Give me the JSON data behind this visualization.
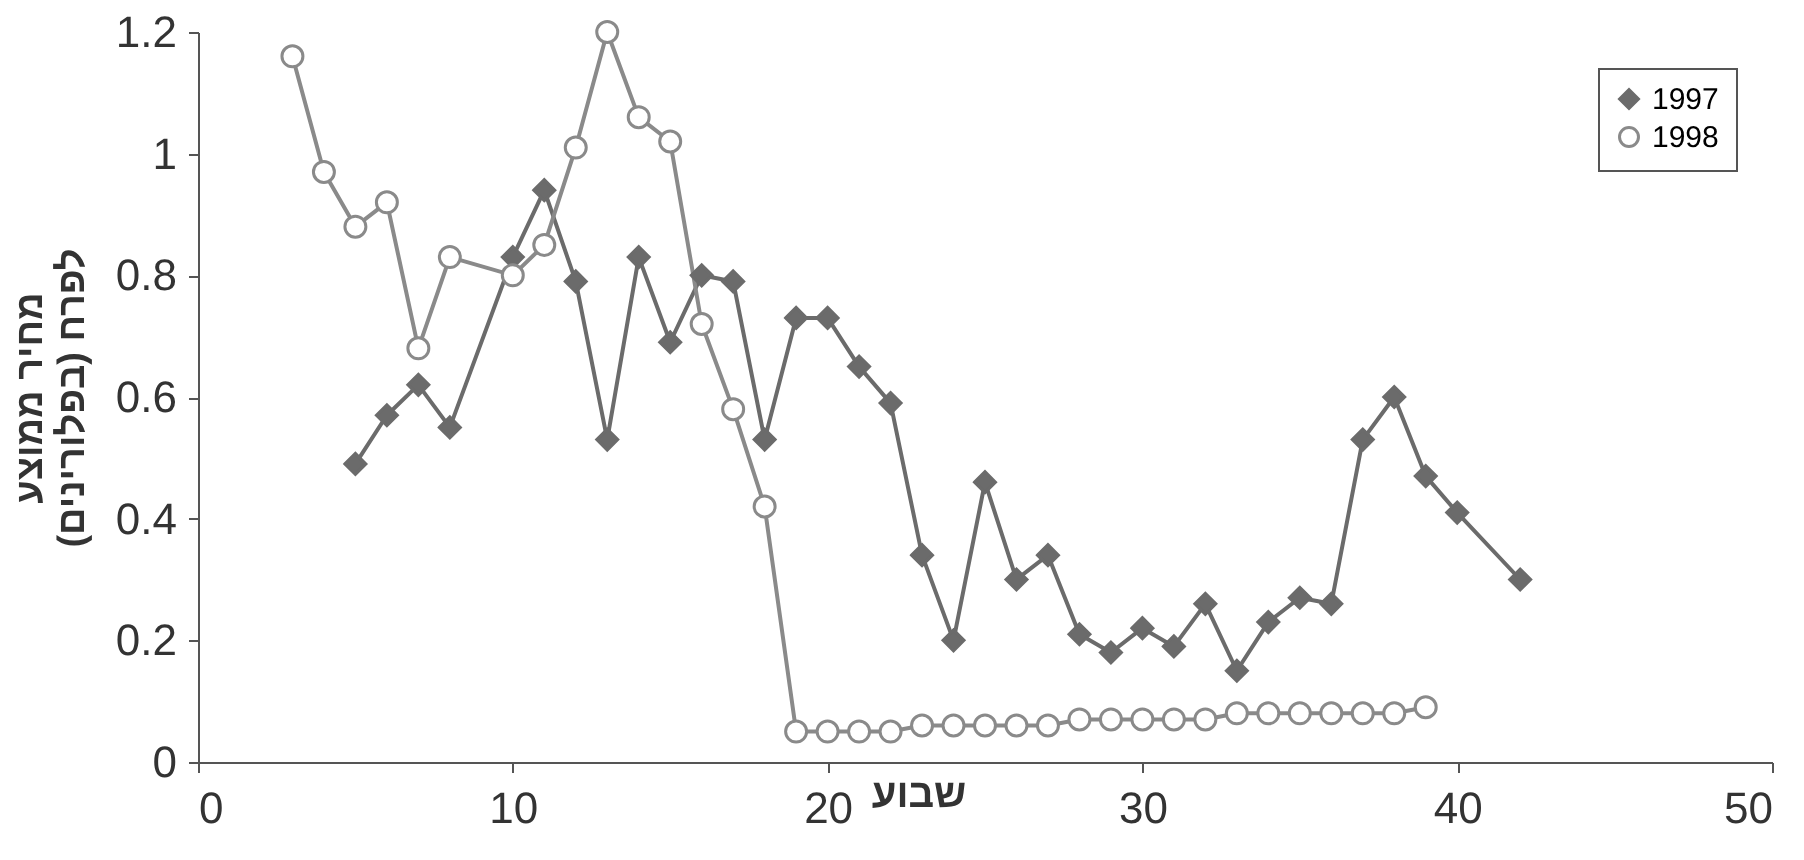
{
  "chart_data": {
    "type": "line",
    "xlabel": "שבוע",
    "ylabel": "מחיר ממוצע לפרח (בפלורינים)",
    "xlim": [
      0,
      50
    ],
    "xticks": [
      0,
      10,
      20,
      30,
      40,
      50
    ],
    "ylim": [
      0,
      1.2
    ],
    "yticks": [
      0,
      0.2,
      0.4,
      0.6,
      0.8,
      1,
      1.2
    ],
    "grid": false,
    "legend": "top right",
    "series": [
      {
        "name": "1997",
        "color": "#6b6b6b",
        "marker": "diamond",
        "x": [
          5,
          6,
          7,
          8,
          10,
          11,
          12,
          13,
          14,
          15,
          16,
          17,
          18,
          19,
          20,
          21,
          22,
          23,
          24,
          25,
          26,
          27,
          28,
          29,
          30,
          31,
          32,
          33,
          34,
          35,
          36,
          37,
          38,
          39,
          40,
          42
        ],
        "values": [
          0.49,
          0.57,
          0.62,
          0.55,
          0.83,
          0.94,
          0.79,
          0.53,
          0.83,
          0.69,
          0.8,
          0.79,
          0.53,
          0.73,
          0.73,
          0.65,
          0.59,
          0.34,
          0.2,
          0.46,
          0.3,
          0.34,
          0.21,
          0.18,
          0.22,
          0.19,
          0.26,
          0.15,
          0.23,
          0.27,
          0.26,
          0.53,
          0.6,
          0.47,
          0.41,
          0.3
        ]
      },
      {
        "name": "1998",
        "color": "#8a8a8a",
        "marker": "circle",
        "x": [
          3,
          4,
          5,
          6,
          7,
          8,
          10,
          11,
          12,
          13,
          14,
          15,
          16,
          17,
          18,
          19,
          20,
          21,
          22,
          23,
          24,
          25,
          26,
          27,
          28,
          29,
          30,
          31,
          32,
          33,
          34,
          35,
          36,
          37,
          38,
          39
        ],
        "values": [
          1.16,
          0.97,
          0.88,
          0.92,
          0.68,
          0.83,
          0.8,
          0.85,
          1.01,
          1.2,
          1.06,
          1.02,
          0.72,
          0.58,
          0.42,
          0.05,
          0.05,
          0.05,
          0.05,
          0.06,
          0.06,
          0.06,
          0.06,
          0.06,
          0.07,
          0.07,
          0.07,
          0.07,
          0.07,
          0.08,
          0.08,
          0.08,
          0.08,
          0.08,
          0.08,
          0.09
        ]
      }
    ]
  }
}
